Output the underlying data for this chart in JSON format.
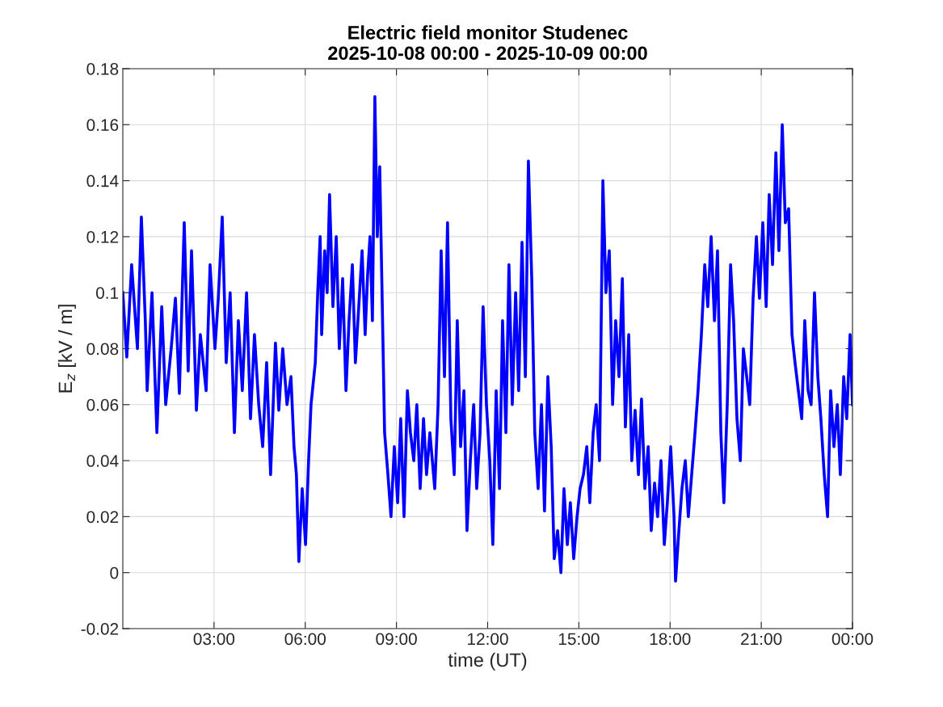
{
  "chart_data": {
    "type": "line",
    "title": "Electric field monitor Studenec\n2025-10-08 00:00 - 2025-10-09 00:00",
    "xlabel": "time (UT)",
    "ylabel": "E$_{z}$ [kV / m]",
    "x": [
      0.0,
      0.13,
      0.29,
      0.48,
      0.61,
      0.74,
      0.8,
      0.96,
      1.12,
      1.28,
      1.41,
      1.59,
      1.73,
      1.86,
      2.02,
      2.15,
      2.26,
      2.42,
      2.55,
      2.74,
      2.87,
      3.03,
      3.14,
      3.27,
      3.4,
      3.53,
      3.67,
      3.8,
      3.93,
      4.07,
      4.2,
      4.33,
      4.47,
      4.6,
      4.73,
      4.86,
      5.02,
      5.13,
      5.26,
      5.4,
      5.53,
      5.63,
      5.71,
      5.79,
      5.9,
      6.01,
      6.11,
      6.19,
      6.33,
      6.41,
      6.49,
      6.54,
      6.64,
      6.72,
      6.8,
      6.91,
      7.02,
      7.12,
      7.23,
      7.34,
      7.44,
      7.55,
      7.65,
      7.76,
      7.87,
      7.97,
      8.05,
      8.13,
      8.21,
      8.29,
      8.37,
      8.45,
      8.53,
      8.61,
      8.72,
      8.82,
      8.93,
      9.04,
      9.14,
      9.25,
      9.36,
      9.46,
      9.57,
      9.67,
      9.78,
      9.89,
      9.99,
      10.1,
      10.26,
      10.37,
      10.47,
      10.58,
      10.68,
      10.79,
      10.9,
      11.0,
      11.11,
      11.22,
      11.32,
      11.43,
      11.54,
      11.64,
      11.75,
      11.85,
      11.96,
      12.07,
      12.17,
      12.28,
      12.39,
      12.49,
      12.6,
      12.7,
      12.81,
      12.92,
      13.02,
      13.13,
      13.24,
      13.34,
      13.45,
      13.55,
      13.66,
      13.77,
      13.87,
      13.98,
      14.09,
      14.19,
      14.3,
      14.41,
      14.51,
      14.62,
      14.72,
      14.83,
      14.94,
      15.04,
      15.15,
      15.26,
      15.36,
      15.47,
      15.57,
      15.68,
      15.79,
      15.89,
      16.0,
      16.11,
      16.21,
      16.32,
      16.43,
      16.53,
      16.64,
      16.74,
      16.85,
      16.96,
      17.06,
      17.17,
      17.28,
      17.38,
      17.49,
      17.59,
      17.7,
      17.81,
      17.91,
      18.02,
      18.13,
      18.18,
      18.29,
      18.39,
      18.5,
      18.6,
      18.71,
      18.82,
      18.92,
      19.03,
      19.14,
      19.24,
      19.35,
      19.46,
      19.56,
      19.67,
      19.77,
      19.88,
      19.99,
      20.09,
      20.2,
      20.31,
      20.41,
      20.52,
      20.62,
      20.73,
      20.84,
      20.94,
      21.05,
      21.16,
      21.26,
      21.37,
      21.48,
      21.58,
      21.69,
      21.79,
      21.9,
      22.01,
      22.11,
      22.22,
      22.33,
      22.43,
      22.54,
      22.64,
      22.75,
      22.86,
      22.96,
      23.07,
      23.18,
      23.28,
      23.39,
      23.5,
      23.6,
      23.71,
      23.81,
      23.92,
      24.0
    ],
    "series": [
      {
        "color": "#0000ff",
        "values": [
          0.1,
          0.077,
          0.11,
          0.08,
          0.127,
          0.09,
          0.065,
          0.1,
          0.05,
          0.095,
          0.06,
          0.08,
          0.098,
          0.064,
          0.125,
          0.072,
          0.115,
          0.058,
          0.085,
          0.065,
          0.11,
          0.08,
          0.098,
          0.127,
          0.075,
          0.1,
          0.05,
          0.09,
          0.065,
          0.1,
          0.055,
          0.085,
          0.06,
          0.045,
          0.075,
          0.035,
          0.082,
          0.058,
          0.08,
          0.06,
          0.07,
          0.045,
          0.035,
          0.004,
          0.03,
          0.01,
          0.04,
          0.06,
          0.075,
          0.1,
          0.12,
          0.085,
          0.115,
          0.1,
          0.135,
          0.095,
          0.12,
          0.08,
          0.105,
          0.065,
          0.09,
          0.11,
          0.075,
          0.095,
          0.115,
          0.085,
          0.106,
          0.12,
          0.09,
          0.17,
          0.12,
          0.145,
          0.098,
          0.05,
          0.035,
          0.02,
          0.045,
          0.025,
          0.055,
          0.02,
          0.065,
          0.05,
          0.04,
          0.06,
          0.03,
          0.055,
          0.035,
          0.05,
          0.03,
          0.06,
          0.115,
          0.07,
          0.125,
          0.055,
          0.035,
          0.09,
          0.045,
          0.065,
          0.015,
          0.04,
          0.06,
          0.03,
          0.05,
          0.095,
          0.06,
          0.04,
          0.01,
          0.065,
          0.03,
          0.09,
          0.05,
          0.11,
          0.06,
          0.1,
          0.065,
          0.118,
          0.07,
          0.147,
          0.105,
          0.05,
          0.03,
          0.06,
          0.022,
          0.07,
          0.045,
          0.005,
          0.015,
          0.0,
          0.03,
          0.01,
          0.025,
          0.005,
          0.02,
          0.03,
          0.035,
          0.045,
          0.025,
          0.05,
          0.06,
          0.04,
          0.14,
          0.1,
          0.115,
          0.06,
          0.09,
          0.07,
          0.105,
          0.052,
          0.085,
          0.04,
          0.058,
          0.035,
          0.062,
          0.03,
          0.045,
          0.015,
          0.032,
          0.02,
          0.04,
          0.01,
          0.025,
          0.045,
          0.02,
          -0.003,
          0.015,
          0.03,
          0.04,
          0.02,
          0.035,
          0.05,
          0.065,
          0.085,
          0.11,
          0.095,
          0.12,
          0.09,
          0.115,
          0.05,
          0.025,
          0.06,
          0.11,
          0.09,
          0.055,
          0.04,
          0.08,
          0.07,
          0.06,
          0.098,
          0.12,
          0.098,
          0.125,
          0.095,
          0.135,
          0.11,
          0.15,
          0.115,
          0.16,
          0.125,
          0.13,
          0.085,
          0.075,
          0.065,
          0.055,
          0.09,
          0.065,
          0.06,
          0.1,
          0.07,
          0.055,
          0.035,
          0.02,
          0.065,
          0.045,
          0.06,
          0.035,
          0.07,
          0.055,
          0.085,
          0.06
        ]
      }
    ],
    "xlim": [
      0,
      24
    ],
    "xticks": [
      {
        "value": 3,
        "label": "03:00"
      },
      {
        "value": 6,
        "label": "06:00"
      },
      {
        "value": 9,
        "label": "09:00"
      },
      {
        "value": 12,
        "label": "12:00"
      },
      {
        "value": 15,
        "label": "15:00"
      },
      {
        "value": 18,
        "label": "18:00"
      },
      {
        "value": 21,
        "label": "21:00"
      },
      {
        "value": 24,
        "label": "00:00"
      }
    ],
    "ylim": [
      -0.02,
      0.18
    ],
    "yticks": [
      -0.02,
      0,
      0.02,
      0.04,
      0.06,
      0.08,
      0.1,
      0.12,
      0.14,
      0.16,
      0.18
    ],
    "grid": true,
    "marker": "none",
    "line_style": "solid"
  }
}
